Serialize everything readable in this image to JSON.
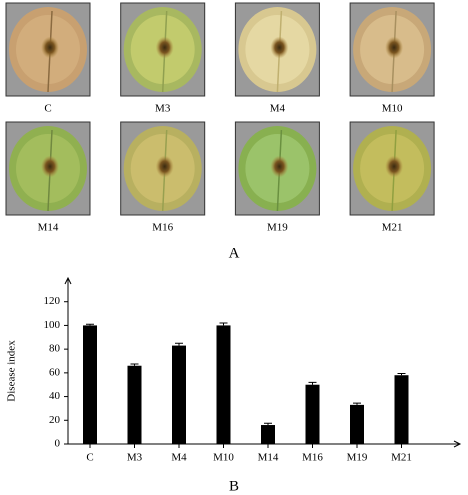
{
  "photos": {
    "labels": [
      "C",
      "M3",
      "M4",
      "M10",
      "M14",
      "M16",
      "M19",
      "M21"
    ],
    "panel_label": "A"
  },
  "chart_data": {
    "type": "bar",
    "panel_label": "B",
    "y_label": "Disease index",
    "categories": [
      "C",
      "M3",
      "M4",
      "M10",
      "M14",
      "M16",
      "M19",
      "M21"
    ],
    "values": [
      100,
      66,
      83,
      100,
      16,
      50,
      33,
      58
    ],
    "errors": [
      1,
      1.5,
      2,
      2,
      1.5,
      2,
      1.5,
      1.5
    ],
    "color": "#000000",
    "ylim": [
      0,
      140
    ],
    "yticks": [
      0,
      20,
      40,
      60,
      80,
      100,
      120
    ],
    "grid": false
  }
}
